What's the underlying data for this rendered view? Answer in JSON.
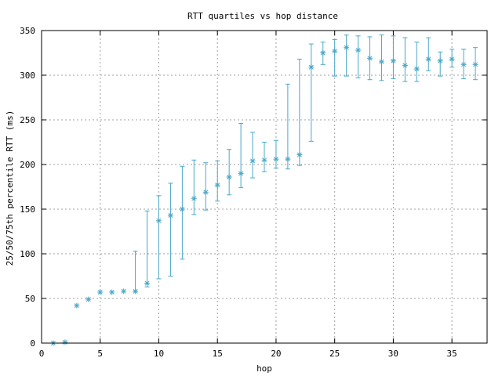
{
  "chart_data": {
    "type": "scatter",
    "title": "RTT quartiles vs hop distance",
    "xlabel": "hop",
    "ylabel": "25/50/75th percentile RTT (ms)",
    "xlim": [
      0,
      38
    ],
    "ylim": [
      0,
      350
    ],
    "x_ticks": [
      0,
      5,
      10,
      15,
      20,
      25,
      30,
      35
    ],
    "y_ticks": [
      0,
      50,
      100,
      150,
      200,
      250,
      300,
      350
    ],
    "grid": true,
    "legend": "none",
    "color": "#4aa8c8",
    "series": [
      {
        "points": [
          {
            "x": 1,
            "p25": 0,
            "median": 0,
            "p75": 0
          },
          {
            "x": 2,
            "p25": 1,
            "median": 1,
            "p75": 1
          },
          {
            "x": 3,
            "p25": 42,
            "median": 42,
            "p75": 42
          },
          {
            "x": 4,
            "p25": 49,
            "median": 49,
            "p75": 49
          },
          {
            "x": 5,
            "p25": 57,
            "median": 57,
            "p75": 57
          },
          {
            "x": 6,
            "p25": 57,
            "median": 57,
            "p75": 57
          },
          {
            "x": 7,
            "p25": 58,
            "median": 58,
            "p75": 58
          },
          {
            "x": 8,
            "p25": 58,
            "median": 58,
            "p75": 103
          },
          {
            "x": 9,
            "p25": 63,
            "median": 67,
            "p75": 148
          },
          {
            "x": 10,
            "p25": 72,
            "median": 137,
            "p75": 165
          },
          {
            "x": 11,
            "p25": 75,
            "median": 143,
            "p75": 179
          },
          {
            "x": 12,
            "p25": 94,
            "median": 150,
            "p75": 198
          },
          {
            "x": 13,
            "p25": 144,
            "median": 162,
            "p75": 205
          },
          {
            "x": 14,
            "p25": 149,
            "median": 169,
            "p75": 202
          },
          {
            "x": 15,
            "p25": 159,
            "median": 177,
            "p75": 204
          },
          {
            "x": 16,
            "p25": 166,
            "median": 186,
            "p75": 217
          },
          {
            "x": 17,
            "p25": 174,
            "median": 190,
            "p75": 246
          },
          {
            "x": 18,
            "p25": 185,
            "median": 204,
            "p75": 236
          },
          {
            "x": 19,
            "p25": 192,
            "median": 205,
            "p75": 225
          },
          {
            "x": 20,
            "p25": 196,
            "median": 206,
            "p75": 227
          },
          {
            "x": 21,
            "p25": 195,
            "median": 206,
            "p75": 290
          },
          {
            "x": 22,
            "p25": 199,
            "median": 211,
            "p75": 318
          },
          {
            "x": 23,
            "p25": 226,
            "median": 309,
            "p75": 335
          },
          {
            "x": 24,
            "p25": 312,
            "median": 325,
            "p75": 337
          },
          {
            "x": 25,
            "p25": 299,
            "median": 327,
            "p75": 340
          },
          {
            "x": 26,
            "p25": 299,
            "median": 331,
            "p75": 345
          },
          {
            "x": 27,
            "p25": 297,
            "median": 328,
            "p75": 344
          },
          {
            "x": 28,
            "p25": 295,
            "median": 319,
            "p75": 343
          },
          {
            "x": 29,
            "p25": 294,
            "median": 315,
            "p75": 345
          },
          {
            "x": 30,
            "p25": 296,
            "median": 316,
            "p75": 344
          },
          {
            "x": 31,
            "p25": 293,
            "median": 311,
            "p75": 342
          },
          {
            "x": 32,
            "p25": 293,
            "median": 307,
            "p75": 337
          },
          {
            "x": 33,
            "p25": 305,
            "median": 318,
            "p75": 342
          },
          {
            "x": 34,
            "p25": 299,
            "median": 316,
            "p75": 326
          },
          {
            "x": 35,
            "p25": 309,
            "median": 318,
            "p75": 329
          },
          {
            "x": 36,
            "p25": 296,
            "median": 312,
            "p75": 329
          },
          {
            "x": 37,
            "p25": 295,
            "median": 312,
            "p75": 331
          }
        ]
      }
    ]
  }
}
